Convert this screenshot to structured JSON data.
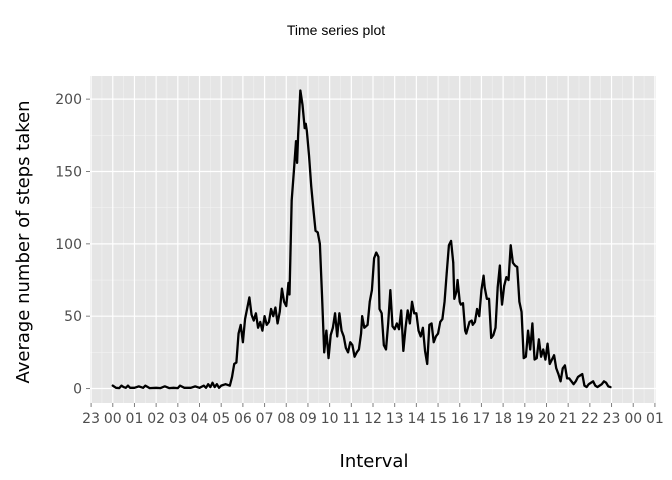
{
  "chart_data": {
    "type": "line",
    "title": "Time series plot",
    "xlabel": "Interval",
    "ylabel": "Average number of steps taken",
    "xlim": [
      -1.05,
      25.05
    ],
    "ylim": [
      -10,
      216
    ],
    "x_ticks": [
      {
        "x": -1,
        "label": "23"
      },
      {
        "x": 0,
        "label": "00"
      },
      {
        "x": 1,
        "label": "01"
      },
      {
        "x": 2,
        "label": "02"
      },
      {
        "x": 3,
        "label": "03"
      },
      {
        "x": 4,
        "label": "04"
      },
      {
        "x": 5,
        "label": "05"
      },
      {
        "x": 6,
        "label": "06"
      },
      {
        "x": 7,
        "label": "07"
      },
      {
        "x": 8,
        "label": "08"
      },
      {
        "x": 9,
        "label": "09"
      },
      {
        "x": 10,
        "label": "10"
      },
      {
        "x": 11,
        "label": "11"
      },
      {
        "x": 12,
        "label": "12"
      },
      {
        "x": 13,
        "label": "13"
      },
      {
        "x": 14,
        "label": "14"
      },
      {
        "x": 15,
        "label": "15"
      },
      {
        "x": 16,
        "label": "16"
      },
      {
        "x": 17,
        "label": "17"
      },
      {
        "x": 18,
        "label": "18"
      },
      {
        "x": 19,
        "label": "19"
      },
      {
        "x": 20,
        "label": "20"
      },
      {
        "x": 21,
        "label": "21"
      },
      {
        "x": 22,
        "label": "22"
      },
      {
        "x": 23,
        "label": "23"
      },
      {
        "x": 24,
        "label": "00"
      },
      {
        "x": 25,
        "label": "01"
      }
    ],
    "y_ticks": [
      0,
      50,
      100,
      150,
      200
    ],
    "grid": true,
    "background": "#E5E5E5",
    "line_color": "#000000",
    "series": [
      {
        "points": [
          [
            0.0,
            2
          ],
          [
            0.15,
            0.5
          ],
          [
            0.3,
            0.3
          ],
          [
            0.4,
            2
          ],
          [
            0.5,
            1
          ],
          [
            0.6,
            0.5
          ],
          [
            0.7,
            2
          ],
          [
            0.8,
            0.5
          ],
          [
            1.0,
            0.5
          ],
          [
            1.2,
            1.5
          ],
          [
            1.4,
            0.5
          ],
          [
            1.5,
            2
          ],
          [
            1.7,
            0.3
          ],
          [
            2.0,
            0.5
          ],
          [
            2.2,
            0.3
          ],
          [
            2.4,
            1.5
          ],
          [
            2.6,
            0.3
          ],
          [
            2.8,
            0.5
          ],
          [
            3.0,
            0.3
          ],
          [
            3.1,
            2
          ],
          [
            3.3,
            0.5
          ],
          [
            3.6,
            0.5
          ],
          [
            3.8,
            1.5
          ],
          [
            4.0,
            0.5
          ],
          [
            4.2,
            2
          ],
          [
            4.3,
            0.5
          ],
          [
            4.4,
            3
          ],
          [
            4.5,
            1
          ],
          [
            4.6,
            4
          ],
          [
            4.7,
            1
          ],
          [
            4.8,
            3
          ],
          [
            4.9,
            0.5
          ],
          [
            5.0,
            2
          ],
          [
            5.2,
            3
          ],
          [
            5.4,
            2
          ],
          [
            5.5,
            8
          ],
          [
            5.6,
            17
          ],
          [
            5.7,
            18
          ],
          [
            5.8,
            38
          ],
          [
            5.9,
            44
          ],
          [
            6.0,
            32
          ],
          [
            6.1,
            48
          ],
          [
            6.3,
            63
          ],
          [
            6.4,
            51
          ],
          [
            6.5,
            47
          ],
          [
            6.6,
            52
          ],
          [
            6.7,
            42
          ],
          [
            6.8,
            46
          ],
          [
            6.9,
            40
          ],
          [
            7.0,
            50
          ],
          [
            7.1,
            44
          ],
          [
            7.2,
            46
          ],
          [
            7.3,
            55
          ],
          [
            7.4,
            50
          ],
          [
            7.5,
            56
          ],
          [
            7.6,
            45
          ],
          [
            7.7,
            53
          ],
          [
            7.8,
            69
          ],
          [
            7.9,
            60
          ],
          [
            8.0,
            57
          ],
          [
            8.1,
            73
          ],
          [
            8.15,
            65
          ],
          [
            8.25,
            130
          ],
          [
            8.35,
            150
          ],
          [
            8.45,
            171
          ],
          [
            8.5,
            156
          ],
          [
            8.55,
            176
          ],
          [
            8.65,
            206
          ],
          [
            8.75,
            196
          ],
          [
            8.85,
            180
          ],
          [
            8.9,
            183
          ],
          [
            8.95,
            178
          ],
          [
            9.05,
            161
          ],
          [
            9.15,
            140
          ],
          [
            9.25,
            124
          ],
          [
            9.35,
            109
          ],
          [
            9.45,
            108
          ],
          [
            9.55,
            100
          ],
          [
            9.65,
            64
          ],
          [
            9.75,
            25
          ],
          [
            9.85,
            40
          ],
          [
            9.95,
            21
          ],
          [
            10.05,
            37
          ],
          [
            10.15,
            42
          ],
          [
            10.25,
            52
          ],
          [
            10.35,
            36
          ],
          [
            10.45,
            52
          ],
          [
            10.55,
            40
          ],
          [
            10.65,
            36
          ],
          [
            10.75,
            28
          ],
          [
            10.85,
            25
          ],
          [
            10.95,
            32
          ],
          [
            11.05,
            30
          ],
          [
            11.15,
            22
          ],
          [
            11.25,
            25
          ],
          [
            11.35,
            27
          ],
          [
            11.45,
            38
          ],
          [
            11.5,
            50
          ],
          [
            11.6,
            42
          ],
          [
            11.75,
            44
          ],
          [
            11.85,
            60
          ],
          [
            11.95,
            68
          ],
          [
            12.05,
            90
          ],
          [
            12.15,
            94
          ],
          [
            12.25,
            91
          ],
          [
            12.3,
            55
          ],
          [
            12.4,
            52
          ],
          [
            12.5,
            30
          ],
          [
            12.6,
            27
          ],
          [
            12.7,
            45
          ],
          [
            12.8,
            68
          ],
          [
            12.9,
            43
          ],
          [
            13.0,
            41
          ],
          [
            13.1,
            45
          ],
          [
            13.2,
            41
          ],
          [
            13.3,
            54
          ],
          [
            13.4,
            26
          ],
          [
            13.5,
            42
          ],
          [
            13.6,
            54
          ],
          [
            13.7,
            45
          ],
          [
            13.8,
            60
          ],
          [
            13.9,
            52
          ],
          [
            14.0,
            52
          ],
          [
            14.1,
            40
          ],
          [
            14.2,
            36
          ],
          [
            14.3,
            42
          ],
          [
            14.4,
            26
          ],
          [
            14.5,
            17
          ],
          [
            14.6,
            44
          ],
          [
            14.7,
            45
          ],
          [
            14.8,
            32
          ],
          [
            14.9,
            36
          ],
          [
            15.0,
            38
          ],
          [
            15.1,
            46
          ],
          [
            15.2,
            48
          ],
          [
            15.3,
            60
          ],
          [
            15.4,
            80
          ],
          [
            15.5,
            99
          ],
          [
            15.6,
            102
          ],
          [
            15.7,
            87
          ],
          [
            15.75,
            62
          ],
          [
            15.85,
            67
          ],
          [
            15.9,
            75
          ],
          [
            16.0,
            60
          ],
          [
            16.05,
            58
          ],
          [
            16.15,
            59
          ],
          [
            16.25,
            40
          ],
          [
            16.3,
            38
          ],
          [
            16.45,
            46
          ],
          [
            16.55,
            47
          ],
          [
            16.6,
            44
          ],
          [
            16.7,
            46
          ],
          [
            16.8,
            55
          ],
          [
            16.9,
            50
          ],
          [
            17.0,
            68
          ],
          [
            17.1,
            78
          ],
          [
            17.15,
            70
          ],
          [
            17.25,
            62
          ],
          [
            17.35,
            62
          ],
          [
            17.45,
            35
          ],
          [
            17.55,
            37
          ],
          [
            17.65,
            42
          ],
          [
            17.75,
            70
          ],
          [
            17.85,
            85
          ],
          [
            17.9,
            68
          ],
          [
            17.95,
            58
          ],
          [
            18.05,
            71
          ],
          [
            18.15,
            77
          ],
          [
            18.25,
            75
          ],
          [
            18.35,
            99
          ],
          [
            18.45,
            87
          ],
          [
            18.55,
            85
          ],
          [
            18.65,
            84
          ],
          [
            18.75,
            60
          ],
          [
            18.85,
            53
          ],
          [
            18.95,
            21
          ],
          [
            19.05,
            22
          ],
          [
            19.15,
            40
          ],
          [
            19.25,
            27
          ],
          [
            19.35,
            45
          ],
          [
            19.45,
            20
          ],
          [
            19.55,
            21
          ],
          [
            19.65,
            34
          ],
          [
            19.75,
            22
          ],
          [
            19.85,
            27
          ],
          [
            19.95,
            20
          ],
          [
            20.05,
            31
          ],
          [
            20.15,
            17
          ],
          [
            20.25,
            20
          ],
          [
            20.35,
            23
          ],
          [
            20.45,
            14
          ],
          [
            20.55,
            10
          ],
          [
            20.65,
            5
          ],
          [
            20.75,
            14
          ],
          [
            20.85,
            16
          ],
          [
            20.95,
            7
          ],
          [
            21.05,
            7
          ],
          [
            21.15,
            5
          ],
          [
            21.25,
            3
          ],
          [
            21.35,
            5
          ],
          [
            21.45,
            8
          ],
          [
            21.55,
            9
          ],
          [
            21.65,
            10
          ],
          [
            21.75,
            2
          ],
          [
            21.85,
            1
          ],
          [
            21.95,
            3
          ],
          [
            22.05,
            4
          ],
          [
            22.15,
            5
          ],
          [
            22.25,
            2
          ],
          [
            22.35,
            1
          ],
          [
            22.45,
            2
          ],
          [
            22.55,
            3
          ],
          [
            22.65,
            5
          ],
          [
            22.75,
            4
          ],
          [
            22.85,
            1.5
          ],
          [
            22.95,
            1
          ]
        ]
      }
    ]
  }
}
